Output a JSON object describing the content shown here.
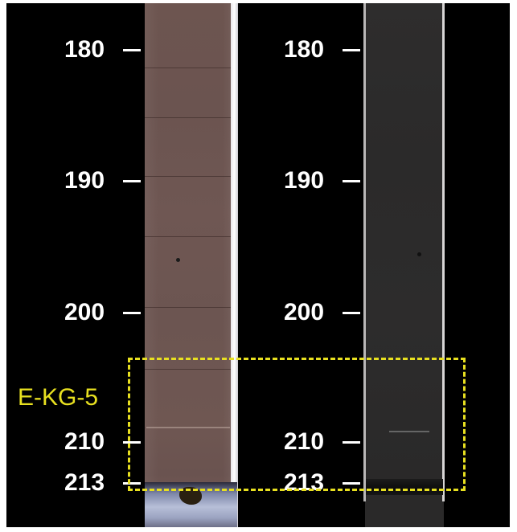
{
  "figure": {
    "left_scale": {
      "labels": [
        "180",
        "190",
        "200",
        "210",
        "213"
      ]
    },
    "right_scale": {
      "labels": [
        "180",
        "190",
        "200",
        "210",
        "213"
      ]
    },
    "zone": {
      "label": "E-KG-5",
      "color": "#e8e020"
    },
    "colors": {
      "background": "#000000",
      "core_color_tone": "#6d5550",
      "core_gray_tone": "#2d2c2c",
      "tick_and_text": "#ffffff"
    }
  }
}
